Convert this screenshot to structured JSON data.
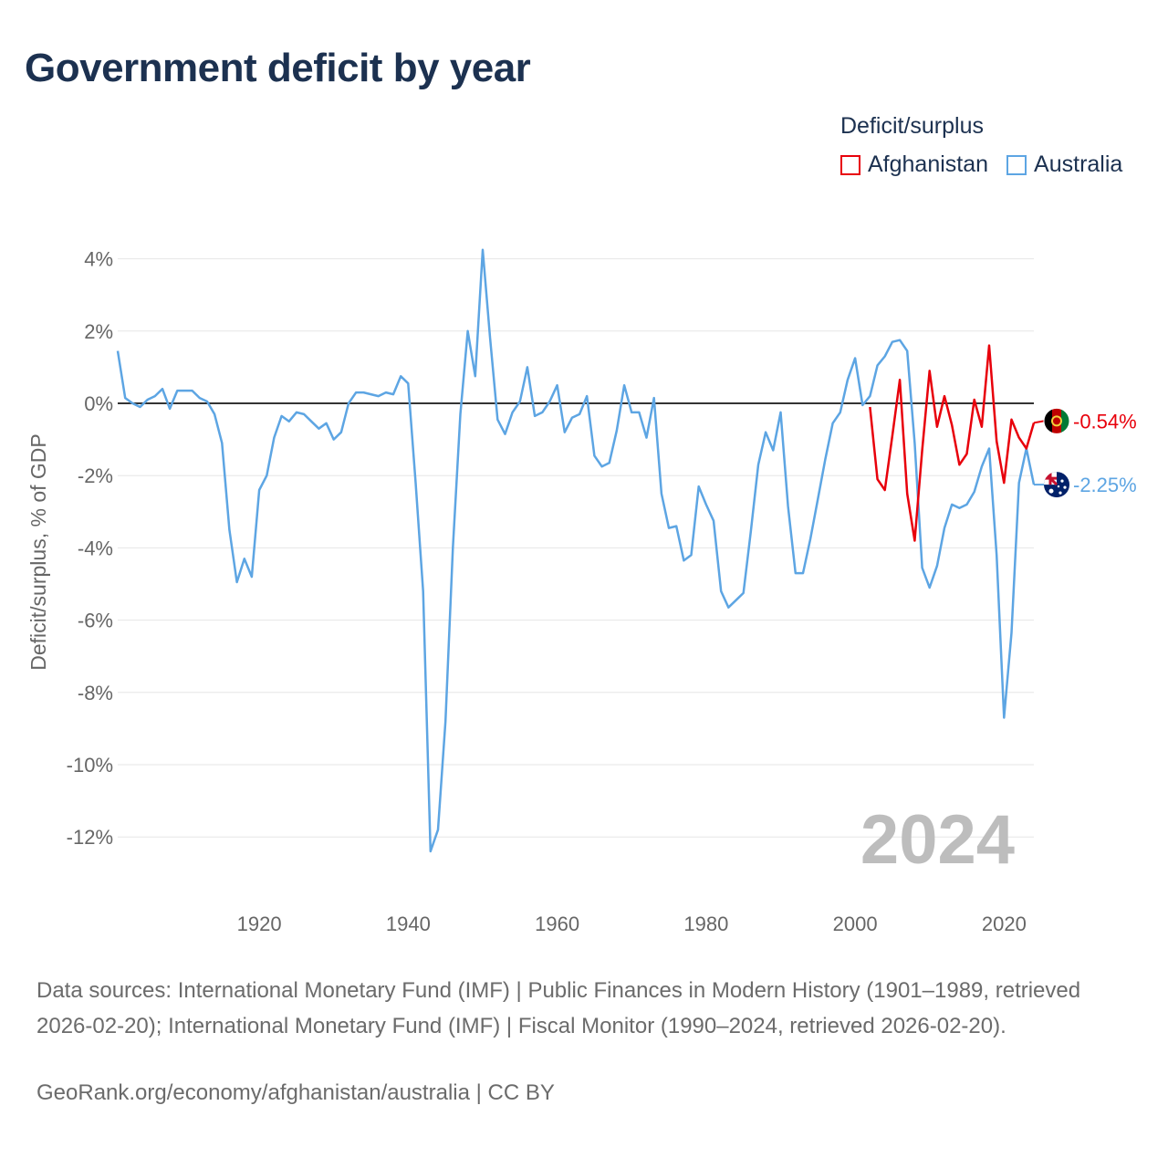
{
  "header": {
    "title": "Government deficit by year"
  },
  "legend": {
    "title": "Deficit/surplus",
    "items": [
      {
        "label": "Afghanistan",
        "color": "#e8000b"
      },
      {
        "label": "Australia",
        "color": "#5da5e3"
      }
    ]
  },
  "footer": {
    "source": "Data sources: International Monetary Fund (IMF) | Public Finances in Modern History (1901–1989, retrieved 2026-02-20); International Monetary Fund (IMF) | Fiscal Monitor (1990–2024, retrieved 2026-02-20).",
    "credit": "GeoRank.org/economy/afghanistan/australia | CC BY"
  },
  "chart_data": {
    "type": "line",
    "title": "Government deficit by year",
    "xlabel": "",
    "ylabel": "Deficit/surplus, % of GDP",
    "xlim": [
      1901,
      2024
    ],
    "ylim": [
      -13,
      4.5
    ],
    "x_ticks": [
      1920,
      1940,
      1960,
      1980,
      2000,
      2020
    ],
    "y_ticks": [
      4,
      2,
      0,
      -2,
      -4,
      -6,
      -8,
      -10,
      -12
    ],
    "y_tick_labels": [
      "4%",
      "2%",
      "0%",
      "-2%",
      "-4%",
      "-6%",
      "-8%",
      "-10%",
      "-12%"
    ],
    "current_year": "2024",
    "series": [
      {
        "name": "Afghanistan",
        "color": "#e8000b",
        "end_label": "-0.54%",
        "x": [
          2002,
          2003,
          2004,
          2005,
          2006,
          2007,
          2008,
          2009,
          2010,
          2011,
          2012,
          2013,
          2014,
          2015,
          2016,
          2017,
          2018,
          2019,
          2020,
          2021,
          2022,
          2023,
          2024
        ],
        "y": [
          -0.1,
          -2.1,
          -2.4,
          -0.9,
          0.65,
          -2.5,
          -3.8,
          -1.3,
          0.9,
          -0.65,
          0.2,
          -0.6,
          -1.7,
          -1.4,
          0.1,
          -0.65,
          1.6,
          -1.05,
          -2.2,
          -0.45,
          -0.95,
          -1.25,
          -0.54
        ]
      },
      {
        "name": "Australia",
        "color": "#5da5e3",
        "end_label": "-2.25%",
        "x": [
          1901,
          1902,
          1903,
          1904,
          1905,
          1906,
          1907,
          1908,
          1909,
          1910,
          1911,
          1912,
          1913,
          1914,
          1915,
          1916,
          1917,
          1918,
          1919,
          1920,
          1921,
          1922,
          1923,
          1924,
          1925,
          1926,
          1927,
          1928,
          1929,
          1930,
          1931,
          1932,
          1933,
          1934,
          1935,
          1936,
          1937,
          1938,
          1939,
          1940,
          1941,
          1942,
          1943,
          1944,
          1945,
          1946,
          1947,
          1948,
          1949,
          1950,
          1951,
          1952,
          1953,
          1954,
          1955,
          1956,
          1957,
          1958,
          1959,
          1960,
          1961,
          1962,
          1963,
          1964,
          1965,
          1966,
          1967,
          1968,
          1969,
          1970,
          1971,
          1972,
          1973,
          1974,
          1975,
          1976,
          1977,
          1978,
          1979,
          1980,
          1981,
          1982,
          1983,
          1984,
          1985,
          1986,
          1987,
          1988,
          1989,
          1990,
          1991,
          1992,
          1993,
          1994,
          1995,
          1996,
          1997,
          1998,
          1999,
          2000,
          2001,
          2002,
          2003,
          2004,
          2005,
          2006,
          2007,
          2008,
          2009,
          2010,
          2011,
          2012,
          2013,
          2014,
          2015,
          2016,
          2017,
          2018,
          2019,
          2020,
          2021,
          2022,
          2023,
          2024
        ],
        "y": [
          1.45,
          0.15,
          0.0,
          -0.1,
          0.1,
          0.2,
          0.4,
          -0.15,
          0.35,
          0.35,
          0.35,
          0.15,
          0.05,
          -0.3,
          -1.1,
          -3.5,
          -4.95,
          -4.3,
          -4.8,
          -2.4,
          -2.0,
          -0.95,
          -0.35,
          -0.5,
          -0.25,
          -0.3,
          -0.5,
          -0.7,
          -0.55,
          -1.0,
          -0.8,
          0.0,
          0.3,
          0.3,
          0.25,
          0.2,
          0.3,
          0.25,
          0.75,
          0.55,
          -2.2,
          -5.2,
          -12.4,
          -11.8,
          -8.8,
          -4.0,
          -0.3,
          2.0,
          0.75,
          4.25,
          1.8,
          -0.45,
          -0.85,
          -0.25,
          0.05,
          1.0,
          -0.35,
          -0.25,
          0.05,
          0.5,
          -0.8,
          -0.4,
          -0.3,
          0.2,
          -1.45,
          -1.75,
          -1.65,
          -0.75,
          0.5,
          -0.25,
          -0.25,
          -0.95,
          0.15,
          -2.5,
          -3.45,
          -3.4,
          -4.35,
          -4.2,
          -2.3,
          -2.8,
          -3.25,
          -5.2,
          -5.65,
          -5.45,
          -5.25,
          -3.55,
          -1.7,
          -0.8,
          -1.3,
          -0.25,
          -2.85,
          -4.7,
          -4.7,
          -3.75,
          -2.65,
          -1.55,
          -0.55,
          -0.25,
          0.65,
          1.25,
          -0.05,
          0.2,
          1.05,
          1.3,
          1.7,
          1.75,
          1.45,
          -1.1,
          -4.55,
          -5.1,
          -4.5,
          -3.45,
          -2.8,
          -2.9,
          -2.8,
          -2.45,
          -1.75,
          -1.25,
          -4.2,
          -8.7,
          -6.35,
          -2.2,
          -1.25,
          -2.25
        ]
      }
    ]
  }
}
